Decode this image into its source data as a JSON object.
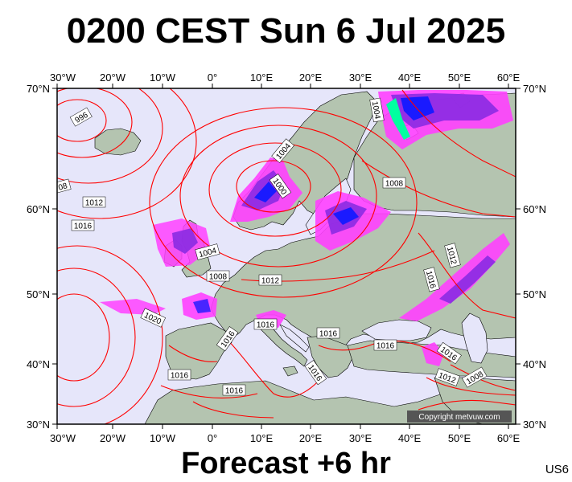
{
  "title": "0200 CEST Sun 6 Jul 2025",
  "subtitle": "Forecast +6 hr",
  "product_code": "US6",
  "copyright": "Copyright metvuw.com",
  "axes": {
    "lon_labels": [
      "30°W",
      "20°W",
      "10°W",
      "0°",
      "10°E",
      "20°E",
      "30°E",
      "40°E",
      "50°E",
      "60°E"
    ],
    "lat_labels": [
      "70°N",
      "60°N",
      "50°N",
      "40°N",
      "30°N"
    ]
  },
  "isobar_labels": [
    {
      "text": "996"
    },
    {
      "text": "1004"
    },
    {
      "text": "1000"
    },
    {
      "text": "1008"
    },
    {
      "text": "1012"
    },
    {
      "text": "1016"
    },
    {
      "text": "1004"
    },
    {
      "text": "1008"
    },
    {
      "text": "1012"
    },
    {
      "text": "1020"
    },
    {
      "text": "1016"
    },
    {
      "text": "1016"
    },
    {
      "text": "1016"
    },
    {
      "text": "1016"
    },
    {
      "text": "1016"
    },
    {
      "text": "1016"
    },
    {
      "text": "1016"
    },
    {
      "text": "1008"
    },
    {
      "text": "1004"
    },
    {
      "text": "1012"
    },
    {
      "text": "1016"
    },
    {
      "text": "1016"
    },
    {
      "text": "1012"
    },
    {
      "text": "1008"
    },
    {
      "text": "08"
    }
  ],
  "colors": {
    "ocean": "#e6e6fa",
    "land": "#b4c4b0",
    "isobar": "#ff0000",
    "rain_light": "#ff40ff",
    "rain_mid": "#8a2be2",
    "rain_heavy": "#1a1aff",
    "rain_extreme": "#00ffa0"
  }
}
